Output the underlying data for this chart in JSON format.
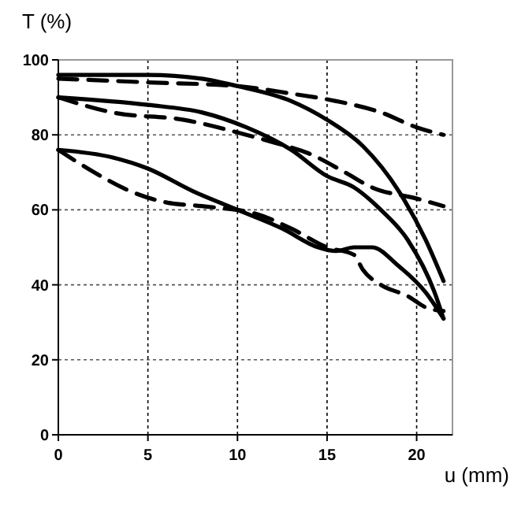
{
  "chart_data": {
    "type": "line",
    "ylabel": "T (%)",
    "xlabel": "u (mm)",
    "xlim": [
      0,
      22
    ],
    "ylim": [
      0,
      100
    ],
    "xticks": [
      0,
      5,
      10,
      15,
      20
    ],
    "yticks": [
      0,
      20,
      40,
      60,
      80,
      100
    ],
    "grid": true,
    "marker": "none",
    "series": [
      {
        "color": "#000000",
        "line_style": "solid",
        "x": [
          0,
          5,
          8,
          10,
          13,
          15,
          17,
          19,
          20.5,
          21.5
        ],
        "values": [
          96,
          96,
          95,
          93,
          89,
          84,
          77,
          65,
          52,
          41
        ]
      },
      {
        "color": "#000000",
        "line_style": "dashed",
        "x": [
          0,
          5,
          10,
          13,
          15.5,
          18,
          20,
          21.5
        ],
        "values": [
          95,
          94,
          93,
          91,
          89,
          86,
          82,
          80
        ]
      },
      {
        "color": "#000000",
        "line_style": "solid",
        "x": [
          0,
          5,
          8,
          10.5,
          13,
          15,
          16.5,
          18,
          19.5,
          21,
          21.5
        ],
        "values": [
          90,
          88,
          86,
          82,
          76,
          69,
          66,
          60,
          52,
          38,
          31
        ]
      },
      {
        "color": "#000000",
        "line_style": "dashed",
        "x": [
          0,
          3,
          7,
          10.5,
          12,
          14,
          16,
          17.5,
          20,
          21.5
        ],
        "values": [
          90,
          86,
          84,
          80,
          78,
          75,
          70,
          66,
          63,
          61
        ]
      },
      {
        "color": "#000000",
        "line_style": "solid",
        "x": [
          0,
          3,
          5,
          7.5,
          10,
          12.5,
          14.5,
          15.5,
          16.5,
          17.5,
          19,
          20.5,
          21.5
        ],
        "values": [
          76,
          74,
          71,
          65,
          60,
          55,
          50,
          49,
          50,
          50,
          45,
          38,
          31
        ]
      },
      {
        "color": "#000000",
        "line_style": "dashed",
        "x": [
          0,
          2,
          4,
          6,
          8,
          11,
          13,
          15,
          16.5,
          17,
          18,
          19.5,
          20.5,
          21.5
        ],
        "values": [
          76,
          70,
          65,
          62,
          61,
          59,
          55,
          50,
          48,
          44,
          40,
          37,
          34,
          33
        ]
      }
    ]
  }
}
